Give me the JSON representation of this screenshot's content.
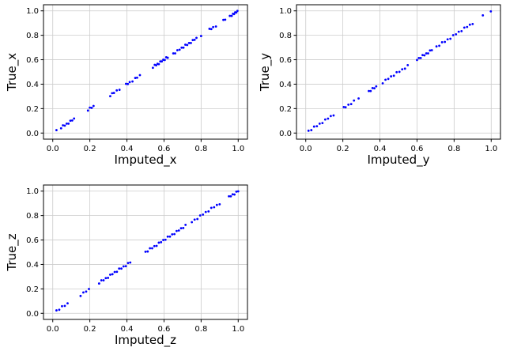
{
  "style": {
    "background": "#ffffff",
    "marker_color": "#0000ff",
    "grid_color": "#cccccc",
    "axis_color": "#000000",
    "tick_label_color": "#000000"
  },
  "chart_data": [
    {
      "type": "scatter",
      "xlabel": "Imputed_x",
      "ylabel": "True_x",
      "xlim": [
        -0.05,
        1.05
      ],
      "ylim": [
        -0.05,
        1.05
      ],
      "xticks": [
        0.0,
        0.2,
        0.4,
        0.6,
        0.8,
        1.0
      ],
      "yticks": [
        0.0,
        0.2,
        0.4,
        0.6,
        0.8,
        1.0
      ],
      "xtick_labels": [
        "0.0",
        "0.2",
        "0.4",
        "0.6",
        "0.8",
        "1.0"
      ],
      "ytick_labels": [
        "0.0",
        "0.2",
        "0.4",
        "0.6",
        "0.8",
        "1.0"
      ],
      "grid": true,
      "legend": null,
      "points": [
        [
          0.02,
          0.024
        ],
        [
          0.045,
          0.039
        ],
        [
          0.055,
          0.063
        ],
        [
          0.065,
          0.061
        ],
        [
          0.075,
          0.077
        ],
        [
          0.085,
          0.077
        ],
        [
          0.095,
          0.101
        ],
        [
          0.105,
          0.103
        ],
        [
          0.115,
          0.119
        ],
        [
          0.19,
          0.184
        ],
        [
          0.2,
          0.208
        ],
        [
          0.21,
          0.206
        ],
        [
          0.22,
          0.222
        ],
        [
          0.31,
          0.302
        ],
        [
          0.32,
          0.326
        ],
        [
          0.33,
          0.328
        ],
        [
          0.345,
          0.349
        ],
        [
          0.36,
          0.354
        ],
        [
          0.395,
          0.403
        ],
        [
          0.405,
          0.401
        ],
        [
          0.415,
          0.417
        ],
        [
          0.43,
          0.422
        ],
        [
          0.445,
          0.451
        ],
        [
          0.455,
          0.453
        ],
        [
          0.47,
          0.474
        ],
        [
          0.54,
          0.534
        ],
        [
          0.55,
          0.558
        ],
        [
          0.558,
          0.554
        ],
        [
          0.565,
          0.567
        ],
        [
          0.572,
          0.564
        ],
        [
          0.58,
          0.586
        ],
        [
          0.588,
          0.586
        ],
        [
          0.596,
          0.6
        ],
        [
          0.604,
          0.598
        ],
        [
          0.612,
          0.62
        ],
        [
          0.62,
          0.616
        ],
        [
          0.65,
          0.652
        ],
        [
          0.66,
          0.652
        ],
        [
          0.672,
          0.678
        ],
        [
          0.684,
          0.682
        ],
        [
          0.695,
          0.699
        ],
        [
          0.705,
          0.699
        ],
        [
          0.715,
          0.723
        ],
        [
          0.725,
          0.721
        ],
        [
          0.735,
          0.737
        ],
        [
          0.745,
          0.737
        ],
        [
          0.755,
          0.761
        ],
        [
          0.765,
          0.763
        ],
        [
          0.775,
          0.779
        ],
        [
          0.8,
          0.794
        ],
        [
          0.845,
          0.853
        ],
        [
          0.855,
          0.851
        ],
        [
          0.865,
          0.867
        ],
        [
          0.88,
          0.872
        ],
        [
          0.92,
          0.926
        ],
        [
          0.93,
          0.928
        ],
        [
          0.955,
          0.959
        ],
        [
          0.965,
          0.959
        ],
        [
          0.972,
          0.976
        ],
        [
          0.978,
          0.974
        ],
        [
          0.984,
          0.988
        ],
        [
          0.99,
          0.986
        ],
        [
          0.996,
          1.0
        ]
      ]
    },
    {
      "type": "scatter",
      "xlabel": "Imputed_y",
      "ylabel": "True_y",
      "xlim": [
        -0.05,
        1.05
      ],
      "ylim": [
        -0.05,
        1.05
      ],
      "xticks": [
        0.0,
        0.2,
        0.4,
        0.6,
        0.8,
        1.0
      ],
      "yticks": [
        0.0,
        0.2,
        0.4,
        0.6,
        0.8,
        1.0
      ],
      "xtick_labels": [
        "0.0",
        "0.2",
        "0.4",
        "0.6",
        "0.8",
        "1.0"
      ],
      "ytick_labels": [
        "0.0",
        "0.2",
        "0.4",
        "0.6",
        "0.8",
        "1.0"
      ],
      "grid": true,
      "legend": null,
      "points": [
        [
          0.015,
          0.019
        ],
        [
          0.03,
          0.024
        ],
        [
          0.045,
          0.053
        ],
        [
          0.06,
          0.056
        ],
        [
          0.075,
          0.077
        ],
        [
          0.09,
          0.082
        ],
        [
          0.105,
          0.111
        ],
        [
          0.12,
          0.118
        ],
        [
          0.135,
          0.139
        ],
        [
          0.15,
          0.144
        ],
        [
          0.205,
          0.213
        ],
        [
          0.215,
          0.211
        ],
        [
          0.23,
          0.232
        ],
        [
          0.245,
          0.237
        ],
        [
          0.26,
          0.266
        ],
        [
          0.285,
          0.283
        ],
        [
          0.34,
          0.344
        ],
        [
          0.35,
          0.344
        ],
        [
          0.36,
          0.368
        ],
        [
          0.37,
          0.366
        ],
        [
          0.38,
          0.382
        ],
        [
          0.415,
          0.407
        ],
        [
          0.43,
          0.436
        ],
        [
          0.445,
          0.443
        ],
        [
          0.46,
          0.464
        ],
        [
          0.475,
          0.469
        ],
        [
          0.49,
          0.498
        ],
        [
          0.505,
          0.501
        ],
        [
          0.52,
          0.522
        ],
        [
          0.535,
          0.527
        ],
        [
          0.55,
          0.556
        ],
        [
          0.6,
          0.598
        ],
        [
          0.61,
          0.614
        ],
        [
          0.62,
          0.614
        ],
        [
          0.63,
          0.638
        ],
        [
          0.64,
          0.636
        ],
        [
          0.65,
          0.652
        ],
        [
          0.66,
          0.652
        ],
        [
          0.67,
          0.676
        ],
        [
          0.68,
          0.678
        ],
        [
          0.705,
          0.709
        ],
        [
          0.72,
          0.714
        ],
        [
          0.735,
          0.743
        ],
        [
          0.75,
          0.746
        ],
        [
          0.765,
          0.767
        ],
        [
          0.78,
          0.772
        ],
        [
          0.795,
          0.801
        ],
        [
          0.81,
          0.808
        ],
        [
          0.825,
          0.829
        ],
        [
          0.84,
          0.834
        ],
        [
          0.855,
          0.863
        ],
        [
          0.87,
          0.868
        ],
        [
          0.885,
          0.887
        ],
        [
          0.9,
          0.892
        ],
        [
          0.955,
          0.963
        ],
        [
          0.998,
          0.996
        ]
      ]
    },
    {
      "type": "scatter",
      "xlabel": "Imputed_z",
      "ylabel": "True_z",
      "xlim": [
        -0.05,
        1.05
      ],
      "ylim": [
        -0.05,
        1.05
      ],
      "xticks": [
        0.0,
        0.2,
        0.4,
        0.6,
        0.8,
        1.0
      ],
      "yticks": [
        0.0,
        0.2,
        0.4,
        0.6,
        0.8,
        1.0
      ],
      "xtick_labels": [
        "0.0",
        "0.2",
        "0.4",
        "0.6",
        "0.8",
        "1.0"
      ],
      "ytick_labels": [
        "0.0",
        "0.2",
        "0.4",
        "0.6",
        "0.8",
        "1.0"
      ],
      "grid": true,
      "legend": null,
      "points": [
        [
          0.02,
          0.024
        ],
        [
          0.035,
          0.029
        ],
        [
          0.05,
          0.058
        ],
        [
          0.065,
          0.061
        ],
        [
          0.08,
          0.082
        ],
        [
          0.15,
          0.142
        ],
        [
          0.165,
          0.171
        ],
        [
          0.18,
          0.178
        ],
        [
          0.195,
          0.199
        ],
        [
          0.25,
          0.244
        ],
        [
          0.262,
          0.27
        ],
        [
          0.274,
          0.27
        ],
        [
          0.286,
          0.288
        ],
        [
          0.298,
          0.29
        ],
        [
          0.31,
          0.316
        ],
        [
          0.322,
          0.32
        ],
        [
          0.334,
          0.338
        ],
        [
          0.346,
          0.34
        ],
        [
          0.358,
          0.366
        ],
        [
          0.37,
          0.366
        ],
        [
          0.382,
          0.384
        ],
        [
          0.394,
          0.386
        ],
        [
          0.406,
          0.412
        ],
        [
          0.418,
          0.416
        ],
        [
          0.5,
          0.504
        ],
        [
          0.512,
          0.506
        ],
        [
          0.524,
          0.532
        ],
        [
          0.536,
          0.532
        ],
        [
          0.548,
          0.55
        ],
        [
          0.56,
          0.552
        ],
        [
          0.572,
          0.578
        ],
        [
          0.584,
          0.582
        ],
        [
          0.596,
          0.6
        ],
        [
          0.608,
          0.602
        ],
        [
          0.62,
          0.628
        ],
        [
          0.632,
          0.628
        ],
        [
          0.644,
          0.646
        ],
        [
          0.656,
          0.648
        ],
        [
          0.668,
          0.674
        ],
        [
          0.68,
          0.678
        ],
        [
          0.692,
          0.696
        ],
        [
          0.704,
          0.698
        ],
        [
          0.716,
          0.724
        ],
        [
          0.75,
          0.746
        ],
        [
          0.765,
          0.767
        ],
        [
          0.78,
          0.772
        ],
        [
          0.795,
          0.801
        ],
        [
          0.81,
          0.808
        ],
        [
          0.825,
          0.829
        ],
        [
          0.84,
          0.834
        ],
        [
          0.855,
          0.863
        ],
        [
          0.87,
          0.868
        ],
        [
          0.885,
          0.887
        ],
        [
          0.9,
          0.892
        ],
        [
          0.95,
          0.958
        ],
        [
          0.96,
          0.958
        ],
        [
          0.97,
          0.974
        ],
        [
          0.98,
          0.972
        ],
        [
          0.99,
          0.996
        ],
        [
          1.0,
          0.998
        ]
      ]
    }
  ]
}
